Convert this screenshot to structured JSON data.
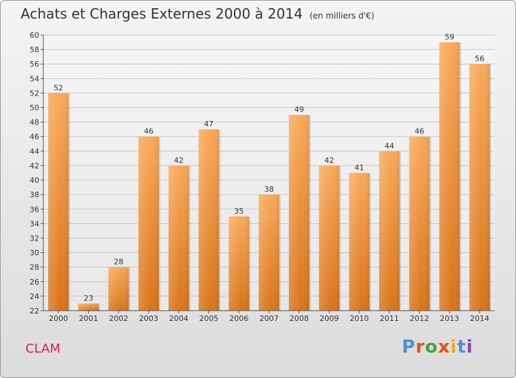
{
  "header": {
    "title": "Achats et Charges Externes 2000 à 2014",
    "unit": "(en milliers d'€)"
  },
  "footer": {
    "place": "CLAM",
    "logo_text": "Proxiti",
    "logo_colors": [
      "#4a90d9",
      "#e94e1b",
      "#43a047",
      "#e94e1b",
      "#f5a623",
      "#4a90d9",
      "#8e44ad"
    ]
  },
  "chart_data": {
    "type": "bar",
    "categories": [
      "2000",
      "2001",
      "2002",
      "2003",
      "2004",
      "2005",
      "2006",
      "2007",
      "2008",
      "2009",
      "2010",
      "2011",
      "2012",
      "2013",
      "2014"
    ],
    "values": [
      52,
      23,
      28,
      46,
      42,
      47,
      35,
      38,
      49,
      42,
      41,
      44,
      46,
      59,
      56
    ],
    "ylim": [
      22,
      60
    ],
    "ytick_step": 2,
    "grid": true,
    "bar_color": "#f0922e"
  }
}
